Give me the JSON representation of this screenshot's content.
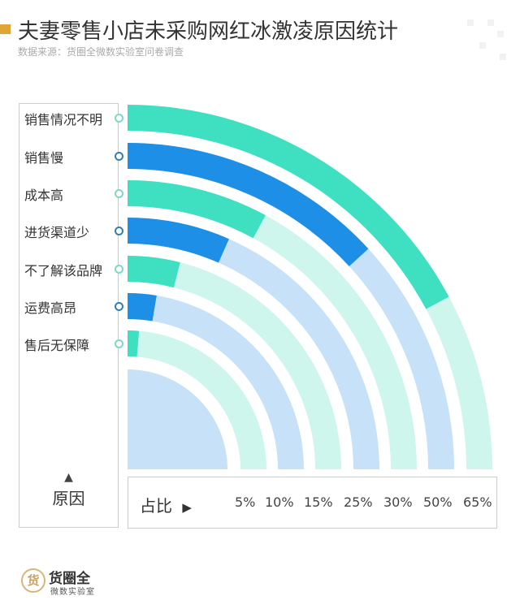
{
  "header": {
    "title": "夫妻零售小店未采购网红冰激凌原因统计",
    "subtitle": "数据来源：货圈全微数实验室问卷调查"
  },
  "chart_data": {
    "type": "radial-bar",
    "categories": [
      "销售情况不明",
      "销售慢",
      "成本高",
      "进货渠道少",
      "不了解该品牌",
      "运费高昂",
      "售后无保障"
    ],
    "values": [
      65,
      50,
      30,
      25,
      15,
      10,
      5
    ],
    "unit": "%",
    "category_axis_label": "原因",
    "value_axis_label": "占比",
    "value_labels": [
      "5%",
      "10%",
      "15%",
      "25%",
      "30%",
      "50%",
      "65%"
    ],
    "colors": {
      "teal": "#3fe0c2",
      "teal_track": "#cff6ec",
      "blue": "#1e8fe6",
      "blue_track": "#c7e1f8",
      "center": "#c7e1f8"
    },
    "color_pattern": [
      "teal",
      "blue",
      "teal",
      "blue",
      "teal",
      "blue",
      "teal"
    ]
  },
  "logo": {
    "mark": "货",
    "name": "货圈全",
    "sub": "微数实验室"
  }
}
